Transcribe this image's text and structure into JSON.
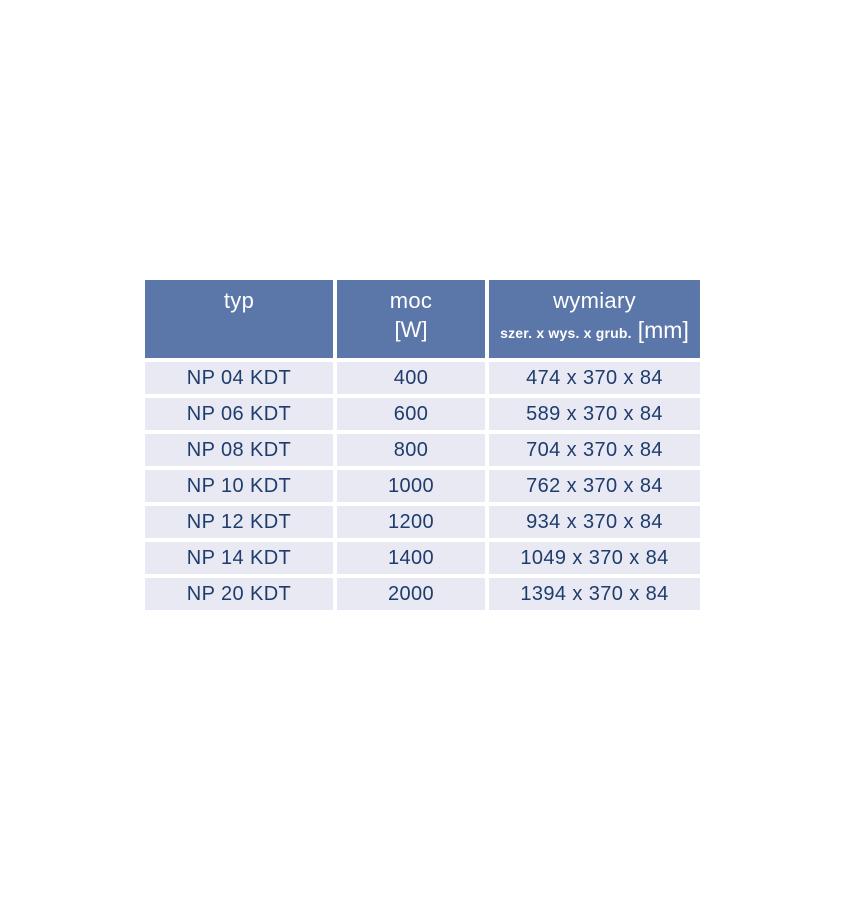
{
  "chart_data": {
    "type": "table",
    "columns": [
      {
        "label": "typ"
      },
      {
        "label": "moc",
        "unit": "[W]"
      },
      {
        "label": "wymiary",
        "sublabel": "szer. x wys. x grub.",
        "unit": "[mm]"
      }
    ],
    "rows": [
      [
        "NP 04 KDT",
        "400",
        "474 x 370 x 84"
      ],
      [
        "NP 06 KDT",
        "600",
        "589 x 370 x 84"
      ],
      [
        "NP 08 KDT",
        "800",
        "704 x 370 x 84"
      ],
      [
        "NP 10 KDT",
        "1000",
        "762 x 370 x 84"
      ],
      [
        "NP 12 KDT",
        "1200",
        "934 x 370 x 84"
      ],
      [
        "NP 14 KDT",
        "1400",
        "1049 x 370 x 84"
      ],
      [
        "NP 20 KDT",
        "2000",
        "1394 x 370 x 84"
      ]
    ],
    "colors": {
      "header_bg": "#5b76a8",
      "header_text": "#ffffff",
      "row_bg": "#e8e9f2",
      "row_text": "#1e3c6e",
      "separator": "#ffffff"
    },
    "layout_hints": {
      "column_alignment": "center",
      "header_lines": 2
    }
  }
}
